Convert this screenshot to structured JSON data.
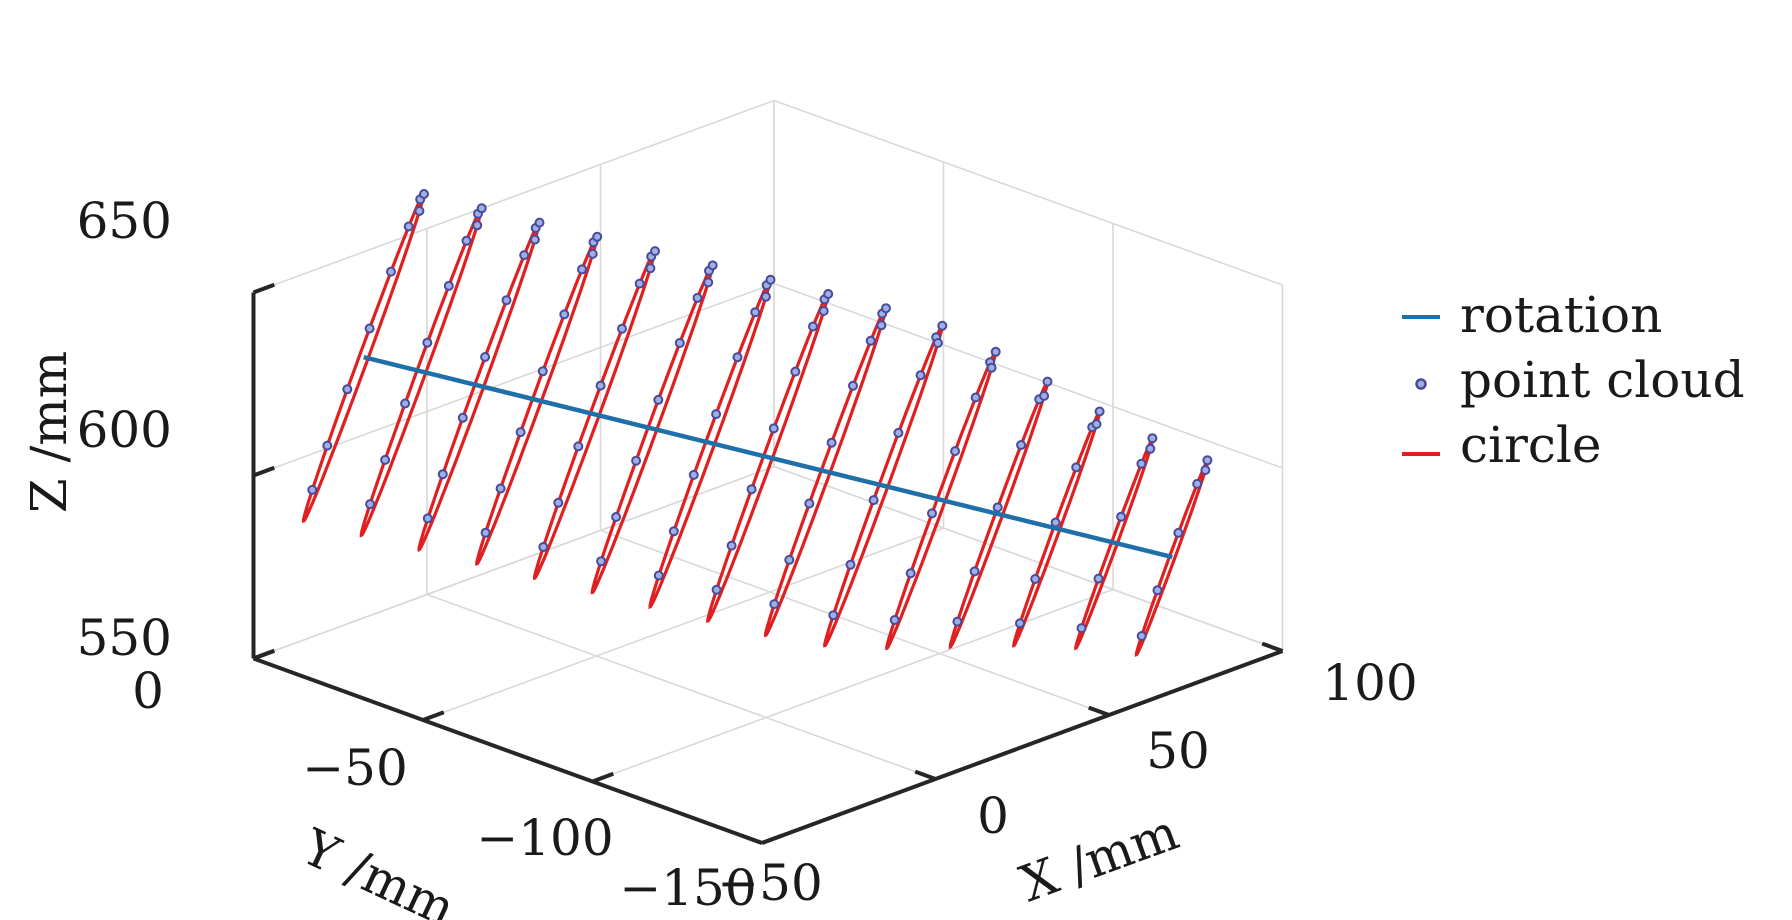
{
  "chart_data": {
    "type": "scatter",
    "subtype": "3d",
    "title": "",
    "xlabel": "X /mm",
    "ylabel": "Y /mm",
    "zlabel": "Z /mm",
    "x_ticks": [
      "−50",
      "0",
      "50",
      "100"
    ],
    "y_ticks": [
      "0",
      "−50",
      "−100",
      "−150"
    ],
    "z_ticks": [
      "550",
      "600",
      "650"
    ],
    "xlim": [
      -50,
      100
    ],
    "ylim": [
      -150,
      0
    ],
    "zlim": [
      550,
      650
    ],
    "grid": true,
    "legend_position": "right",
    "colors": {
      "rotation": "#1f6fa8",
      "point_cloud": "#4a4a9c",
      "circle": "#e02020"
    },
    "legend": [
      {
        "key": "rotation",
        "label": "rotation",
        "style": "line"
      },
      {
        "key": "point_cloud",
        "label": "point cloud",
        "style": "marker"
      },
      {
        "key": "circle",
        "label": "circle",
        "style": "line"
      }
    ],
    "rotation_axis": {
      "start": [
        -28,
        -10,
        628
      ],
      "end": [
        78,
        -140,
        580
      ]
    },
    "circles": [
      {
        "radius": 42,
        "point_count": 9
      },
      {
        "radius": 42,
        "point_count": 9
      },
      {
        "radius": 42,
        "point_count": 9
      },
      {
        "radius": 42,
        "point_count": 9
      },
      {
        "radius": 42,
        "point_count": 9
      },
      {
        "radius": 42,
        "point_count": 9
      },
      {
        "radius": 42,
        "point_count": 9
      },
      {
        "radius": 42,
        "point_count": 9
      },
      {
        "radius": 42,
        "point_count": 9
      },
      {
        "radius": 41,
        "point_count": 8
      },
      {
        "radius": 38,
        "point_count": 8
      },
      {
        "radius": 34,
        "point_count": 7
      },
      {
        "radius": 30,
        "point_count": 7
      },
      {
        "radius": 27,
        "point_count": 6
      },
      {
        "radius": 25,
        "point_count": 6
      }
    ]
  }
}
